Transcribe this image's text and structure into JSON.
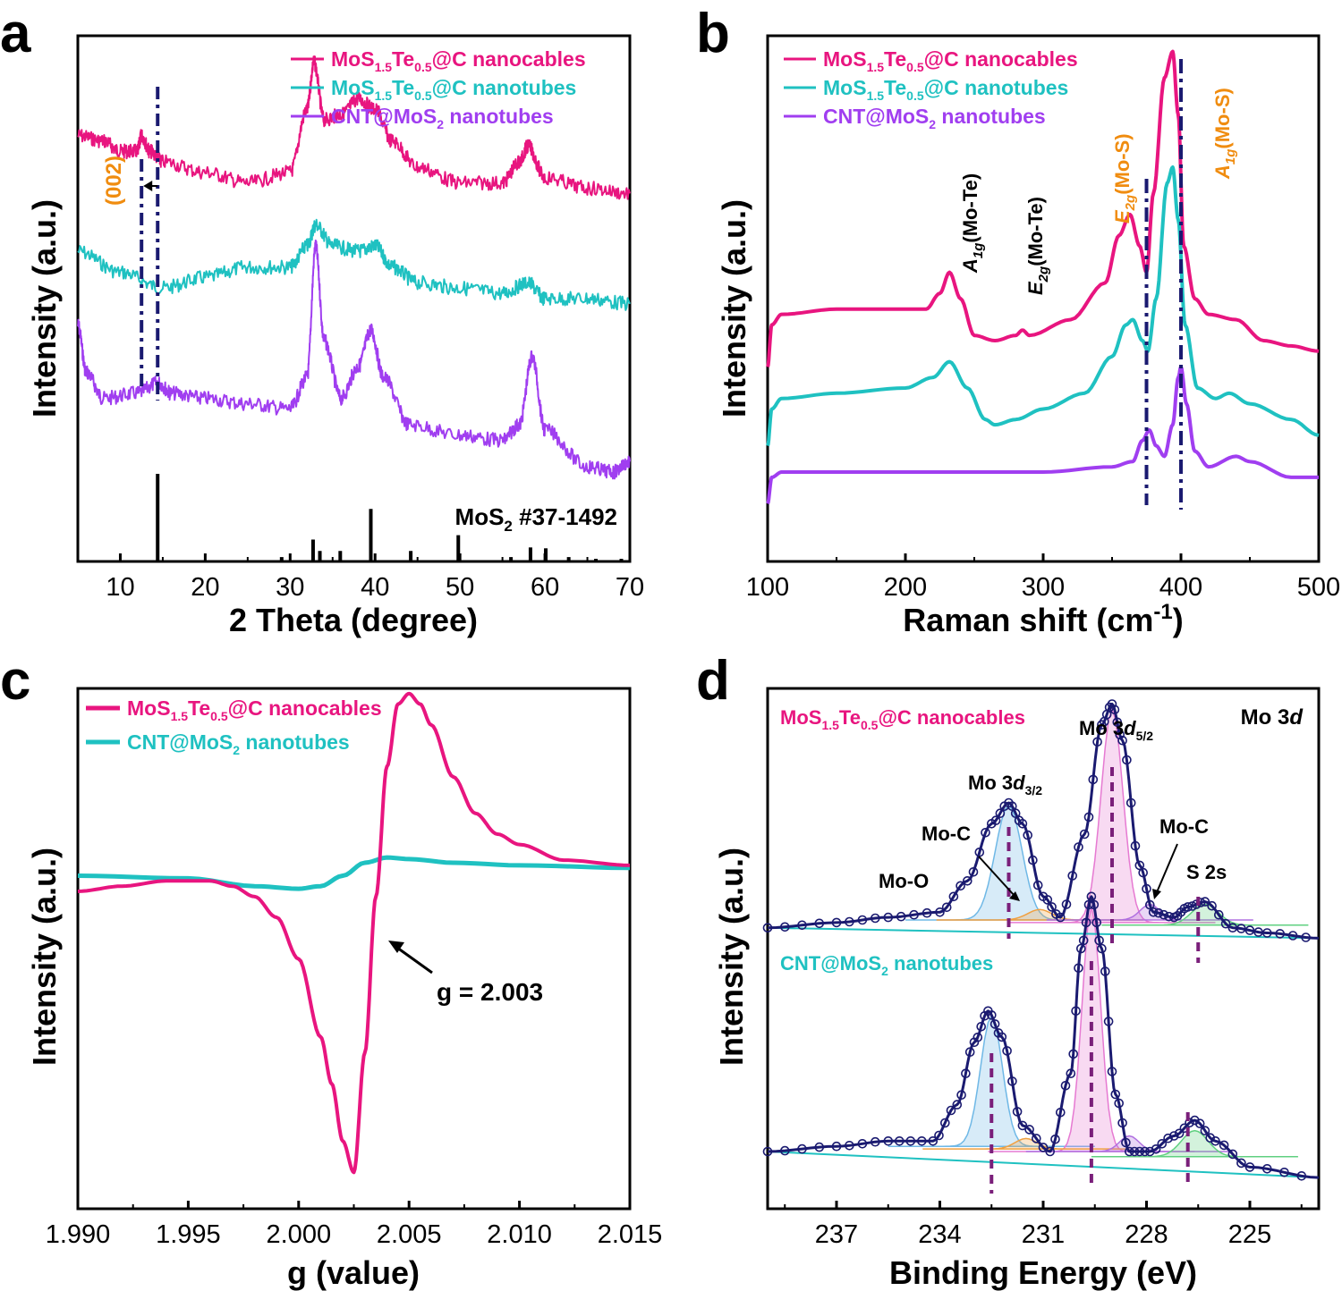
{
  "colors": {
    "pink": "#e8157f",
    "cyan": "#1fc1c1",
    "purple": "#a03ef0",
    "navy": "#1a1a70",
    "orange": "#f08c0f",
    "dashed_purple": "#7a1f7a",
    "black": "#000000"
  },
  "chart_data": [
    {
      "panel": "a",
      "type": "line",
      "xlabel": "2 Theta (degree)",
      "ylabel": "Intensity (a.u.)",
      "xlim": [
        5,
        70
      ],
      "xticks": [
        "10",
        "20",
        "30",
        "40",
        "50",
        "60",
        "70"
      ],
      "series": [
        {
          "name": "MoS1.5Te0.5@C nanocables",
          "color_key": "pink",
          "x": [
            5,
            8,
            10,
            12,
            12.5,
            13.5,
            15,
            20,
            25,
            30,
            32,
            32.8,
            34,
            36,
            38,
            40,
            42,
            45,
            50,
            55,
            57,
            58,
            60,
            65,
            70
          ],
          "y": [
            0.81,
            0.8,
            0.78,
            0.78,
            0.81,
            0.78,
            0.76,
            0.74,
            0.72,
            0.74,
            0.86,
            0.95,
            0.84,
            0.85,
            0.88,
            0.86,
            0.8,
            0.75,
            0.72,
            0.72,
            0.76,
            0.79,
            0.73,
            0.71,
            0.7
          ]
        },
        {
          "name": "MoS1.5Te0.5@C nanotubes",
          "color_key": "cyan",
          "x": [
            5,
            10,
            15,
            20,
            25,
            30,
            32,
            33,
            35,
            38,
            40,
            42,
            45,
            50,
            55,
            58,
            60,
            65,
            70
          ],
          "y": [
            0.59,
            0.55,
            0.52,
            0.54,
            0.56,
            0.56,
            0.6,
            0.64,
            0.6,
            0.59,
            0.6,
            0.56,
            0.53,
            0.52,
            0.51,
            0.53,
            0.5,
            0.5,
            0.49
          ]
        },
        {
          "name": "CNT@MoS2 nanotubes",
          "color_key": "purple",
          "x": [
            5,
            6,
            8,
            12,
            14.5,
            16,
            20,
            25,
            30,
            32,
            33,
            34,
            36,
            38,
            39.5,
            41,
            44,
            50,
            55,
            57,
            58.5,
            60,
            65,
            68,
            70
          ],
          "y": [
            0.45,
            0.36,
            0.31,
            0.32,
            0.34,
            0.32,
            0.31,
            0.3,
            0.29,
            0.35,
            0.6,
            0.42,
            0.31,
            0.37,
            0.44,
            0.35,
            0.26,
            0.24,
            0.23,
            0.26,
            0.39,
            0.25,
            0.18,
            0.17,
            0.19
          ]
        }
      ],
      "legend_position": "top-right",
      "reference": {
        "label": "MoS2 #37-1492",
        "x": [
          14.4,
          29,
          32.7,
          33.5,
          35.9,
          39.5,
          44.2,
          49.8,
          56,
          58.3,
          60.1,
          62.8,
          66,
          69
        ],
        "intensity": [
          1.0,
          0.05,
          0.25,
          0.12,
          0.12,
          0.6,
          0.12,
          0.3,
          0.05,
          0.16,
          0.15,
          0.05,
          0.03,
          0.03
        ]
      },
      "vlines": [
        12.5,
        14.4
      ],
      "annotation": "(002)"
    },
    {
      "panel": "b",
      "type": "line",
      "xlabel": "Raman shift (cm-1)",
      "ylabel": "Intensity (a.u.)",
      "xlim": [
        100,
        500
      ],
      "xticks": [
        "100",
        "200",
        "300",
        "400",
        "500"
      ],
      "series": [
        {
          "name": "MoS1.5Te0.5@C nanocables",
          "color_key": "pink",
          "x": [
            100,
            103,
            110,
            150,
            200,
            215,
            225,
            232,
            240,
            250,
            265,
            280,
            285,
            290,
            320,
            345,
            355,
            363,
            370,
            375,
            380,
            388,
            394,
            398,
            402,
            410,
            420,
            440,
            460,
            480,
            500
          ],
          "y": [
            0.37,
            0.45,
            0.47,
            0.48,
            0.48,
            0.48,
            0.51,
            0.55,
            0.5,
            0.43,
            0.42,
            0.43,
            0.44,
            0.43,
            0.46,
            0.53,
            0.62,
            0.66,
            0.6,
            0.55,
            0.7,
            0.92,
            0.97,
            0.85,
            0.6,
            0.5,
            0.47,
            0.46,
            0.42,
            0.41,
            0.4
          ]
        },
        {
          "name": "MoS1.5Te0.5@C nanotubes",
          "color_key": "cyan",
          "x": [
            100,
            103,
            110,
            150,
            200,
            220,
            232,
            245,
            258,
            265,
            280,
            300,
            330,
            350,
            360,
            365,
            372,
            376,
            382,
            390,
            394,
            398,
            403,
            412,
            425,
            435,
            450,
            480,
            500
          ],
          "y": [
            0.22,
            0.29,
            0.31,
            0.32,
            0.33,
            0.35,
            0.38,
            0.33,
            0.27,
            0.26,
            0.27,
            0.29,
            0.32,
            0.39,
            0.45,
            0.46,
            0.42,
            0.4,
            0.5,
            0.72,
            0.75,
            0.65,
            0.45,
            0.33,
            0.31,
            0.32,
            0.3,
            0.27,
            0.24
          ]
        },
        {
          "name": "CNT@MoS2 nanotubes",
          "color_key": "purple",
          "x": [
            100,
            103,
            110,
            150,
            200,
            250,
            300,
            350,
            365,
            372,
            377,
            382,
            388,
            394,
            398,
            400,
            404,
            410,
            420,
            440,
            450,
            480,
            500
          ],
          "y": [
            0.11,
            0.16,
            0.17,
            0.17,
            0.17,
            0.17,
            0.17,
            0.18,
            0.19,
            0.23,
            0.25,
            0.22,
            0.2,
            0.26,
            0.35,
            0.37,
            0.3,
            0.21,
            0.18,
            0.2,
            0.19,
            0.16,
            0.16
          ]
        }
      ],
      "legend_position": "top-left",
      "vlines": [
        375,
        400
      ],
      "annotations": [
        "A1g(Mo-Te)",
        "E2g(Mo-Te)",
        "E2g(Mo-S)",
        "A1g(Mo-S)"
      ]
    },
    {
      "panel": "c",
      "type": "line",
      "xlabel": "g (value)",
      "ylabel": "Intensity (a.u.)",
      "xlim": [
        1.99,
        2.015
      ],
      "xticks": [
        "1.990",
        "1.995",
        "2.000",
        "2.005",
        "2.010",
        "2.015"
      ],
      "series": [
        {
          "name": "MoS1.5Te0.5@C nanocables",
          "color_key": "pink",
          "x": [
            1.99,
            1.992,
            1.994,
            1.996,
            1.997,
            1.998,
            1.999,
            2.0,
            2.001,
            2.0015,
            2.002,
            2.0025,
            2.003,
            2.0035,
            2.004,
            2.0045,
            2.005,
            2.0055,
            2.006,
            2.007,
            2.008,
            2.009,
            2.01,
            2.012,
            2.015
          ],
          "y": [
            0.61,
            0.62,
            0.63,
            0.63,
            0.62,
            0.6,
            0.56,
            0.48,
            0.33,
            0.24,
            0.13,
            0.07,
            0.3,
            0.6,
            0.85,
            0.97,
            0.99,
            0.97,
            0.93,
            0.83,
            0.76,
            0.72,
            0.7,
            0.67,
            0.66
          ]
        },
        {
          "name": "CNT@MoS2 nanotubes",
          "color_key": "cyan",
          "x": [
            1.99,
            1.995,
            1.998,
            2.0,
            2.001,
            2.002,
            2.003,
            2.004,
            2.005,
            2.007,
            2.01,
            2.015
          ],
          "y": [
            0.64,
            0.635,
            0.62,
            0.615,
            0.62,
            0.64,
            0.665,
            0.675,
            0.672,
            0.665,
            0.66,
            0.655
          ]
        }
      ],
      "legend_position": "top-left",
      "annotation": "g = 2.003"
    },
    {
      "panel": "d",
      "type": "line",
      "xlabel": "Binding Energy (eV)",
      "ylabel": "Intensity (a.u.)",
      "xlim": [
        239,
        223
      ],
      "xticks": [
        "237",
        "234",
        "231",
        "228",
        "225"
      ],
      "title": "Mo 3d",
      "series": [
        {
          "name": "MoS1.5Te0.5@C nanocables",
          "color_key": "navy",
          "x": [
            239,
            237,
            235.5,
            234,
            233.2,
            232.5,
            232.0,
            231.6,
            231.0,
            230.5,
            229.8,
            229.3,
            229.0,
            228.7,
            228.2,
            227.8,
            227.2,
            226.8,
            226.3,
            225.5,
            224.5,
            223
          ],
          "y": [
            0.54,
            0.55,
            0.56,
            0.57,
            0.63,
            0.74,
            0.78,
            0.74,
            0.6,
            0.56,
            0.72,
            0.93,
            0.97,
            0.9,
            0.66,
            0.57,
            0.56,
            0.58,
            0.59,
            0.54,
            0.53,
            0.52
          ]
        },
        {
          "name": "CNT@MoS2 nanotubes",
          "color_key": "navy",
          "x": [
            239,
            237,
            235.5,
            234.2,
            233.5,
            233.0,
            232.6,
            232.2,
            231.6,
            230.8,
            230.2,
            229.9,
            229.6,
            229.3,
            228.9,
            228.5,
            227.9,
            227.2,
            226.6,
            226.0,
            225.0,
            223
          ],
          "y": [
            0.11,
            0.12,
            0.13,
            0.13,
            0.2,
            0.32,
            0.38,
            0.33,
            0.16,
            0.11,
            0.26,
            0.5,
            0.6,
            0.5,
            0.22,
            0.11,
            0.11,
            0.14,
            0.17,
            0.13,
            0.08,
            0.06
          ]
        }
      ],
      "peaks_top": [
        232.0,
        229.0,
        226.5
      ],
      "peaks_bottom": [
        232.5,
        229.6,
        226.8
      ],
      "annotations": [
        "Mo-O",
        "Mo-C",
        "Mo 3d3/2",
        "Mo 3d5/2",
        "Mo-C",
        "S 2s"
      ]
    }
  ],
  "panels": {
    "a": {
      "letter": "a",
      "legend": [
        {
          "pre": "MoS",
          "s1": "1.5",
          "mid": "Te",
          "s2": "0.5",
          "post": "@C nanocables"
        },
        {
          "pre": "MoS",
          "s1": "1.5",
          "mid": "Te",
          "s2": "0.5",
          "post": "@C nanotubes"
        },
        {
          "pre": "CNT@MoS",
          "s1": "2",
          "post": " nanotubes"
        }
      ],
      "ref_label": {
        "pre": "MoS",
        "sub": "2",
        "post": " #37-1492"
      },
      "peak_label": "(002)"
    },
    "b": {
      "letter": "b",
      "legend": [
        {
          "pre": "MoS",
          "s1": "1.5",
          "mid": "Te",
          "s2": "0.5",
          "post": "@C nanocables"
        },
        {
          "pre": "MoS",
          "s1": "1.5",
          "mid": "Te",
          "s2": "0.5",
          "post": "@C nanotubes"
        },
        {
          "pre": "CNT@MoS",
          "s1": "2",
          "post": " nanotubes"
        }
      ],
      "labels": [
        {
          "main": "A",
          "sub": "1g",
          "rest": "(Mo-Te)"
        },
        {
          "main": "E",
          "sub": "2g",
          "rest": "(Mo-Te)"
        },
        {
          "main": "E",
          "sub": "2g",
          "rest": "(Mo-S)"
        },
        {
          "main": "A",
          "sub": "1g",
          "rest": "(Mo-S)"
        }
      ],
      "xlabel_main": "Raman shift (cm",
      "xlabel_sup": "-1",
      "xlabel_end": ")"
    },
    "c": {
      "letter": "c",
      "legend": [
        {
          "pre": "MoS",
          "s1": "1.5",
          "mid": "Te",
          "s2": "0.5",
          "post": "@C nanocables"
        },
        {
          "pre": "CNT@MoS",
          "s1": "2",
          "post": " nanotubes"
        }
      ],
      "g_label": "g = 2.003"
    },
    "d": {
      "letter": "d",
      "top_label": {
        "pre": "MoS",
        "s1": "1.5",
        "mid": "Te",
        "s2": "0.5",
        "post": "@C nanocables"
      },
      "bottom_label": {
        "pre": "CNT@MoS",
        "s1": "2",
        "post": " nanotubes"
      },
      "mo3d_main": "Mo 3",
      "mo3d_ital": "d",
      "mo_o": "Mo-O",
      "mo_c_left": "Mo-C",
      "mo_c_right": "Mo-C",
      "s2s": "S 2s",
      "d32": {
        "main": "Mo 3",
        "ital": "d",
        "sub": "3/2"
      },
      "d52": {
        "main": "Mo 3",
        "ital": "d",
        "sub": "5/2"
      }
    }
  }
}
